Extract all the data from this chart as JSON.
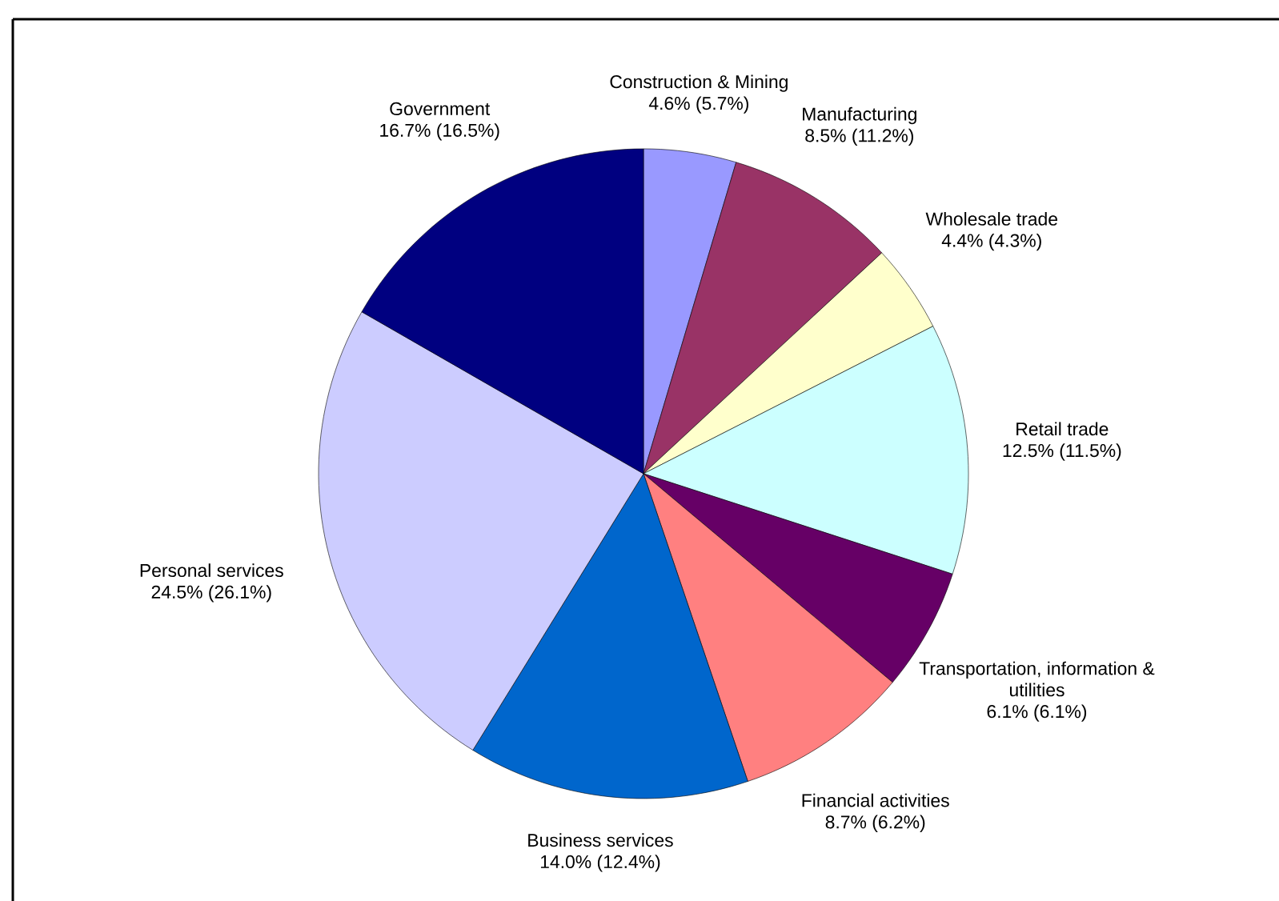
{
  "chart_data": {
    "type": "pie",
    "categories": [
      "Construction & Mining",
      "Manufacturing",
      "Wholesale trade",
      "Retail trade",
      "Transportation, information & utilities",
      "Financial activities",
      "Business services",
      "Personal services",
      "Government"
    ],
    "values": [
      4.6,
      8.5,
      4.4,
      12.5,
      6.1,
      8.7,
      14.0,
      24.5,
      16.7
    ],
    "value_labels": [
      "4.6% (5.7%)",
      "8.5% (11.2%)",
      "4.4% (4.3%)",
      "12.5% (11.5%)",
      "6.1% (6.1%)",
      "8.7% (6.2%)",
      "14.0% (12.4%)",
      "24.5% (26.1%)",
      "16.7% (16.5%)"
    ],
    "colors": [
      "#9999ff",
      "#993366",
      "#ffffcc",
      "#ccffff",
      "#660066",
      "#ff8080",
      "#0066cc",
      "#ccccff",
      "#000080"
    ]
  }
}
